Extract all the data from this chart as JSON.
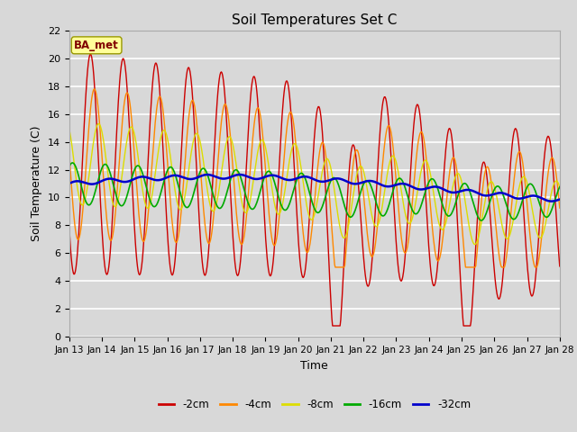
{
  "title": "Soil Temperatures Set C",
  "xlabel": "Time",
  "ylabel": "Soil Temperature (C)",
  "ylim": [
    0,
    22
  ],
  "yticks": [
    0,
    2,
    4,
    6,
    8,
    10,
    12,
    14,
    16,
    18,
    20,
    22
  ],
  "xtick_labels": [
    "Jan 13",
    "Jan 14",
    "Jan 15",
    "Jan 16",
    "Jan 17",
    "Jan 18",
    "Jan 19",
    "Jan 20",
    "Jan 21",
    "Jan 22",
    "Jan 23",
    "Jan 24",
    "Jan 25",
    "Jan 26",
    "Jan 27",
    "Jan 28"
  ],
  "fig_bg": "#d8d8d8",
  "plot_bg": "#d8d8d8",
  "legend_label": "BA_met",
  "legend_box_color": "#ffff99",
  "legend_text_color": "#800000",
  "series": [
    {
      "label": "-2cm",
      "color": "#cc0000",
      "lw": 1.0
    },
    {
      "label": "-4cm",
      "color": "#ff8800",
      "lw": 1.0
    },
    {
      "label": "-8cm",
      "color": "#dddd00",
      "lw": 1.0
    },
    {
      "label": "-16cm",
      "color": "#00aa00",
      "lw": 1.2
    },
    {
      "label": "-32cm",
      "color": "#0000cc",
      "lw": 1.8
    }
  ],
  "n_days": 15,
  "points_per_day": 48
}
